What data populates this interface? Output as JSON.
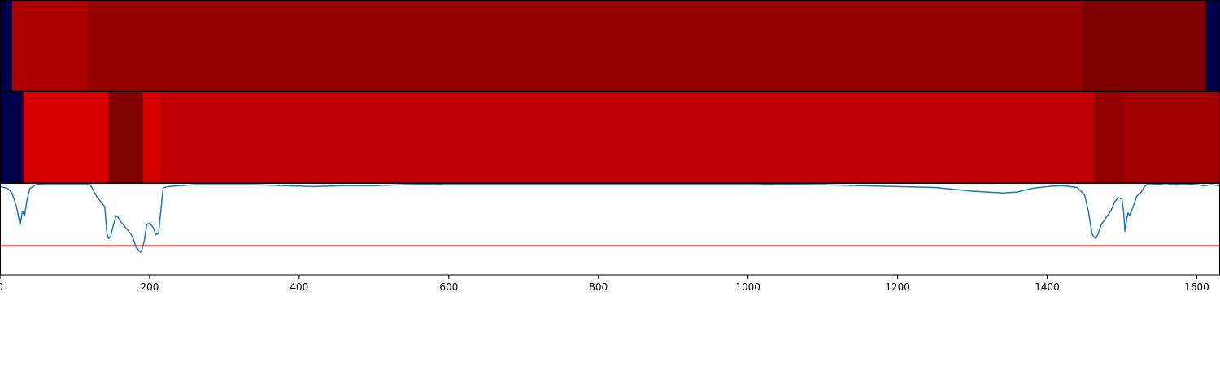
{
  "chart_data": [
    {
      "type": "heatmap",
      "xlim": [
        0,
        1631
      ],
      "segments": [
        {
          "x0": 0,
          "x1": 16,
          "color": "#00004c"
        },
        {
          "x0": 16,
          "x1": 116,
          "color": "#ad0000"
        },
        {
          "x0": 116,
          "x1": 1446,
          "color": "#960000"
        },
        {
          "x0": 1446,
          "x1": 1612,
          "color": "#800000"
        },
        {
          "x0": 1612,
          "x1": 1631,
          "color": "#00004c"
        }
      ]
    },
    {
      "type": "heatmap",
      "xlim": [
        0,
        1631
      ],
      "segments": [
        {
          "x0": 0,
          "x1": 31,
          "color": "#00004c"
        },
        {
          "x0": 31,
          "x1": 145,
          "color": "#d80000"
        },
        {
          "x0": 145,
          "x1": 191,
          "color": "#810000"
        },
        {
          "x0": 191,
          "x1": 215,
          "color": "#d50000"
        },
        {
          "x0": 215,
          "x1": 1463,
          "color": "#c00000"
        },
        {
          "x0": 1463,
          "x1": 1503,
          "color": "#940000"
        },
        {
          "x0": 1503,
          "x1": 1631,
          "color": "#a30000"
        }
      ]
    },
    {
      "type": "line",
      "xlim": [
        0,
        1631
      ],
      "ylim": [
        0,
        1
      ],
      "xticks": [
        0,
        200,
        400,
        600,
        800,
        1000,
        1200,
        1400,
        1600
      ],
      "line_color": "#1f77b4",
      "threshold": 0.32,
      "threshold_color": "#ff0000",
      "x": [
        0,
        10,
        16,
        22,
        27,
        30,
        33,
        36,
        40,
        48,
        60,
        120,
        130,
        140,
        143,
        145,
        148,
        150,
        155,
        158,
        160,
        170,
        175,
        178,
        182,
        188,
        190,
        193,
        196,
        200,
        205,
        208,
        212,
        215,
        218,
        220,
        225,
        240,
        260,
        300,
        340,
        380,
        420,
        460,
        500,
        540,
        600,
        700,
        800,
        900,
        1000,
        1100,
        1150,
        1200,
        1250,
        1300,
        1340,
        1360,
        1370,
        1380,
        1400,
        1420,
        1440,
        1450,
        1455,
        1458,
        1460,
        1462,
        1465,
        1468,
        1472,
        1478,
        1485,
        1490,
        1495,
        1500,
        1502,
        1504,
        1506,
        1508,
        1510,
        1515,
        1520,
        1525,
        1530,
        1535,
        1540,
        1560,
        1580,
        1600,
        1610,
        1620,
        1631
      ],
      "y": [
        0.97,
        0.95,
        0.9,
        0.75,
        0.55,
        0.7,
        0.65,
        0.82,
        0.95,
        0.99,
        1.0,
        1.0,
        0.85,
        0.75,
        0.45,
        0.4,
        0.42,
        0.5,
        0.65,
        0.63,
        0.6,
        0.5,
        0.45,
        0.4,
        0.3,
        0.25,
        0.28,
        0.38,
        0.55,
        0.57,
        0.52,
        0.44,
        0.46,
        0.7,
        0.95,
        0.96,
        0.97,
        0.98,
        0.99,
        0.99,
        0.99,
        0.98,
        0.97,
        0.98,
        0.98,
        0.99,
        1.0,
        1.0,
        1.0,
        1.0,
        1.0,
        0.99,
        0.98,
        0.97,
        0.96,
        0.92,
        0.9,
        0.91,
        0.93,
        0.95,
        0.97,
        0.98,
        0.96,
        0.88,
        0.7,
        0.55,
        0.45,
        0.42,
        0.4,
        0.45,
        0.55,
        0.62,
        0.7,
        0.8,
        0.85,
        0.83,
        0.7,
        0.48,
        0.6,
        0.68,
        0.65,
        0.75,
        0.87,
        0.9,
        0.97,
        1.0,
        1.0,
        0.99,
        1.0,
        0.99,
        0.98,
        0.99,
        0.98
      ]
    }
  ]
}
